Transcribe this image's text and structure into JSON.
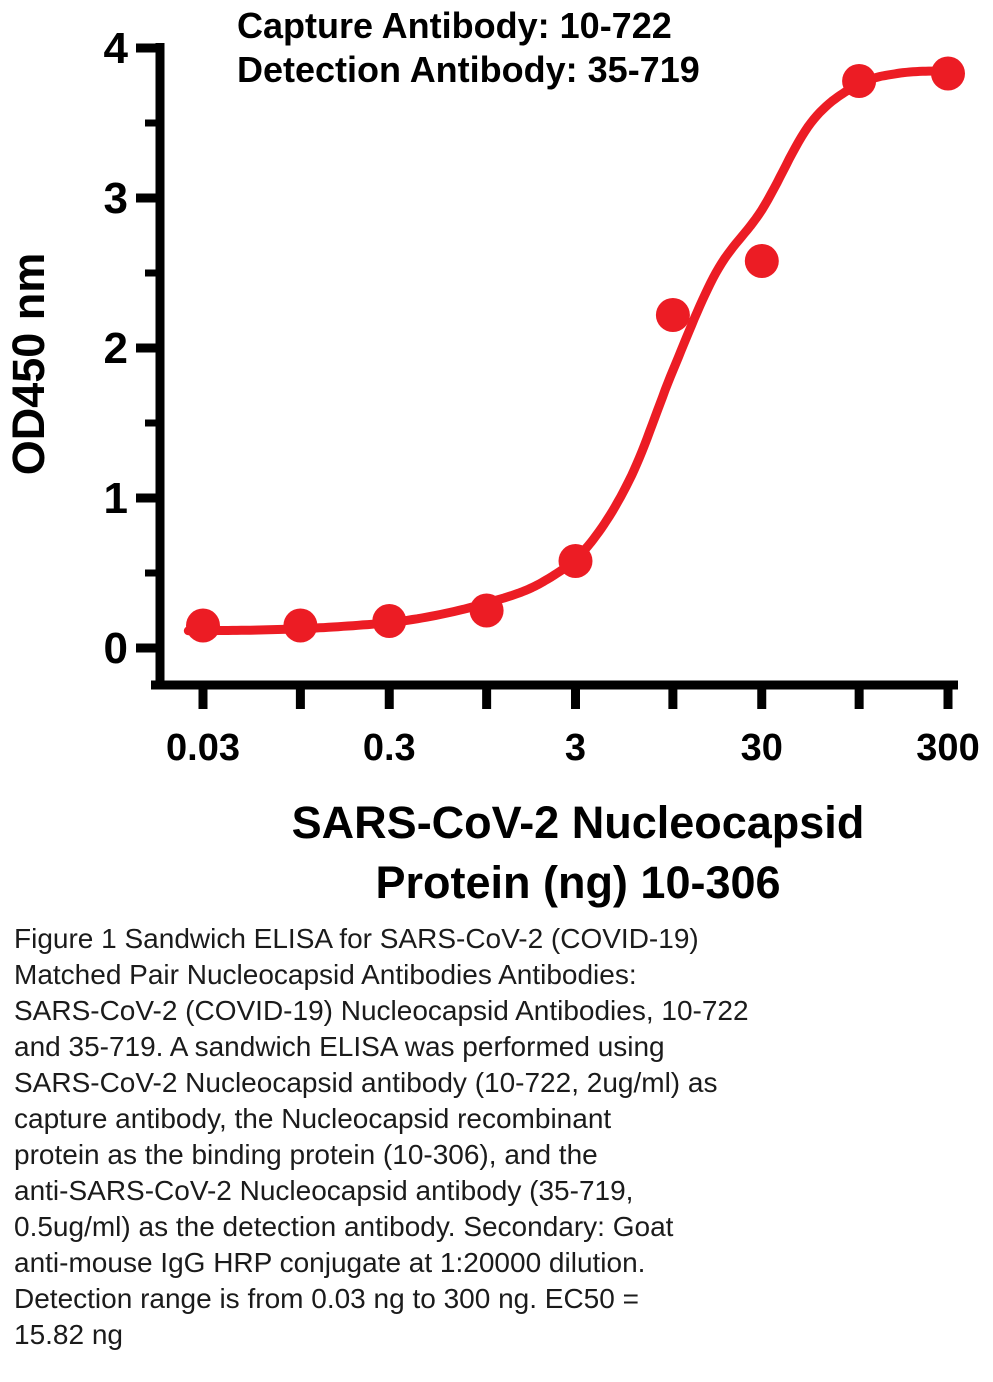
{
  "page": {
    "background": "#ffffff"
  },
  "chart_data": {
    "type": "scatter",
    "title_lines": [
      "Capture Antibody: 10-722",
      "Detection Antibody: 35-719"
    ],
    "ylabel": "OD450 nm",
    "xlabel_lines": [
      "SARS-CoV-2 Nucleocapsid",
      "Protein (ng) 10-306"
    ],
    "x_scale": "log",
    "xlim": [
      0.03,
      300
    ],
    "ylim": [
      0,
      4
    ],
    "grid": false,
    "legend": "none",
    "y_major_ticks": [
      0,
      1,
      2,
      3,
      4
    ],
    "y_minor_ticks": [
      0.5,
      1.5,
      2.5,
      3.5
    ],
    "x_ticks": [
      {
        "value": 0.03,
        "label": "0.03"
      },
      {
        "value": 0.1,
        "label": ""
      },
      {
        "value": 0.3,
        "label": "0.3"
      },
      {
        "value": 1,
        "label": ""
      },
      {
        "value": 3,
        "label": "3"
      },
      {
        "value": 10,
        "label": ""
      },
      {
        "value": 30,
        "label": "30"
      },
      {
        "value": 100,
        "label": ""
      },
      {
        "value": 300,
        "label": "300"
      }
    ],
    "series": [
      {
        "color": "#ec1c24",
        "marker": "circle",
        "points": [
          {
            "x": 0.03,
            "y": 0.15
          },
          {
            "x": 0.1,
            "y": 0.15
          },
          {
            "x": 0.3,
            "y": 0.18
          },
          {
            "x": 1,
            "y": 0.25
          },
          {
            "x": 3,
            "y": 0.58
          },
          {
            "x": 10,
            "y": 2.22
          },
          {
            "x": 30,
            "y": 2.58
          },
          {
            "x": 100,
            "y": 3.78
          },
          {
            "x": 300,
            "y": 3.83
          }
        ]
      }
    ],
    "fit_curve": {
      "color": "#ec1c24",
      "shape": "sigmoid-4PL",
      "anchors": [
        {
          "x": 0.025,
          "y": 0.115
        },
        {
          "x": 0.06,
          "y": 0.12
        },
        {
          "x": 0.15,
          "y": 0.14
        },
        {
          "x": 0.4,
          "y": 0.19
        },
        {
          "x": 1,
          "y": 0.3
        },
        {
          "x": 2,
          "y": 0.44
        },
        {
          "x": 3.5,
          "y": 0.68
        },
        {
          "x": 6,
          "y": 1.15
        },
        {
          "x": 10,
          "y": 1.85
        },
        {
          "x": 17,
          "y": 2.5
        },
        {
          "x": 30,
          "y": 2.92
        },
        {
          "x": 55,
          "y": 3.5
        },
        {
          "x": 100,
          "y": 3.76
        },
        {
          "x": 160,
          "y": 3.83
        },
        {
          "x": 300,
          "y": 3.85
        }
      ]
    }
  },
  "caption": {
    "lines": [
      "Figure 1 Sandwich ELISA for SARS-CoV-2 (COVID-19)",
      "Matched Pair Nucleocapsid Antibodies Antibodies:",
      "SARS-CoV-2 (COVID-19) Nucleocapsid Antibodies, 10-722",
      "and 35-719. A sandwich ELISA was performed using",
      "SARS-CoV-2 Nucleocapsid antibody (10-722, 2ug/ml) as",
      "capture antibody, the Nucleocapsid recombinant",
      "protein as the binding protein (10-306), and the",
      "anti-SARS-CoV-2 Nucleocapsid antibody (35-719,",
      "0.5ug/ml) as the detection antibody. Secondary: Goat",
      "anti-mouse IgG HRP conjugate at 1:20000 dilution.",
      "Detection range is from 0.03 ng to 300 ng. EC50 =",
      "15.82 ng"
    ]
  }
}
